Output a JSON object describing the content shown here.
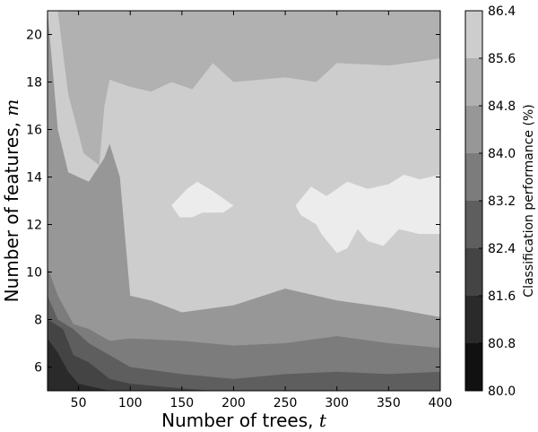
{
  "chart_data": {
    "type": "contour",
    "xlabel": "Number of trees, ",
    "xlabel_var": "t",
    "ylabel": "Number of features, ",
    "ylabel_var": "m",
    "xlim": [
      20,
      400
    ],
    "ylim": [
      5,
      21
    ],
    "x_ticks": [
      50,
      100,
      150,
      200,
      250,
      300,
      350,
      400
    ],
    "y_ticks": [
      6,
      8,
      10,
      12,
      14,
      16,
      18,
      20
    ],
    "x_tick_labels": [
      "50",
      "100",
      "150",
      "200",
      "250",
      "300",
      "350",
      "400"
    ],
    "y_tick_labels": [
      "6",
      "8",
      "10",
      "12",
      "14",
      "16",
      "18",
      "20"
    ],
    "colorbar": {
      "label": "Classification performance (%)",
      "levels": [
        80.0,
        80.8,
        81.6,
        82.4,
        83.2,
        84.0,
        84.8,
        85.6,
        86.4
      ],
      "level_labels": [
        "80.0",
        "80.8",
        "81.6",
        "82.4",
        "83.2",
        "84.0",
        "84.8",
        "85.6",
        "86.4"
      ],
      "colors": [
        "#111111",
        "#2a2a2a",
        "#444444",
        "#5e5e5e",
        "#7c7c7c",
        "#979797",
        "#b1b1b1",
        "#cdcdcd",
        "#ececec"
      ]
    },
    "regions": [
      {
        "band": 1,
        "points": [
          [
            20,
            7.2
          ],
          [
            30,
            6.6
          ],
          [
            40,
            5.8
          ],
          [
            50,
            5.3
          ],
          [
            80,
            5.0
          ],
          [
            20,
            5.0
          ]
        ]
      },
      {
        "band": 2,
        "points": [
          [
            20,
            8.0
          ],
          [
            35,
            7.6
          ],
          [
            45,
            6.5
          ],
          [
            60,
            6.2
          ],
          [
            80,
            5.5
          ],
          [
            100,
            5.3
          ],
          [
            150,
            5.1
          ],
          [
            180,
            5.0
          ],
          [
            20,
            5.0
          ]
        ]
      },
      {
        "band": 3,
        "points": [
          [
            20,
            9.0
          ],
          [
            30,
            8.0
          ],
          [
            45,
            7.6
          ],
          [
            60,
            7.0
          ],
          [
            80,
            6.5
          ],
          [
            100,
            6.0
          ],
          [
            150,
            5.7
          ],
          [
            200,
            5.5
          ],
          [
            250,
            5.7
          ],
          [
            300,
            5.8
          ],
          [
            350,
            5.7
          ],
          [
            400,
            5.8
          ],
          [
            400,
            5.0
          ],
          [
            20,
            5.0
          ]
        ]
      },
      {
        "band": 4,
        "points": [
          [
            20,
            10.2
          ],
          [
            30,
            9.0
          ],
          [
            45,
            7.8
          ],
          [
            60,
            7.6
          ],
          [
            80,
            7.1
          ],
          [
            100,
            7.2
          ],
          [
            150,
            7.1
          ],
          [
            200,
            6.9
          ],
          [
            250,
            7.0
          ],
          [
            300,
            7.3
          ],
          [
            350,
            7.0
          ],
          [
            400,
            6.8
          ],
          [
            400,
            5.0
          ],
          [
            20,
            5.0
          ]
        ]
      },
      {
        "band": 5,
        "points": [
          [
            20,
            21.0
          ],
          [
            20,
            21.0
          ],
          [
            30,
            16.0
          ],
          [
            40,
            14.2
          ],
          [
            60,
            13.8
          ],
          [
            75,
            14.8
          ],
          [
            80,
            15.4
          ],
          [
            90,
            14.0
          ],
          [
            100,
            9.0
          ],
          [
            120,
            8.8
          ],
          [
            150,
            8.3
          ],
          [
            200,
            8.6
          ],
          [
            250,
            9.3
          ],
          [
            300,
            8.8
          ],
          [
            350,
            8.5
          ],
          [
            400,
            8.1
          ],
          [
            400,
            5.0
          ],
          [
            20,
            5.0
          ]
        ]
      },
      {
        "band": 6,
        "points": [
          [
            20,
            21.0
          ],
          [
            30,
            21.0
          ],
          [
            40,
            17.5
          ],
          [
            55,
            15.0
          ],
          [
            70,
            14.5
          ],
          [
            75,
            17.0
          ],
          [
            80,
            18.1
          ],
          [
            100,
            17.8
          ],
          [
            120,
            17.6
          ],
          [
            140,
            18.0
          ],
          [
            160,
            17.7
          ],
          [
            180,
            18.8
          ],
          [
            200,
            18.0
          ],
          [
            250,
            18.2
          ],
          [
            280,
            18.0
          ],
          [
            300,
            18.8
          ],
          [
            350,
            18.7
          ],
          [
            400,
            19.0
          ],
          [
            400,
            5.0
          ],
          [
            20,
            5.0
          ]
        ]
      },
      {
        "band": 7,
        "points": [
          [
            20,
            21.0
          ],
          [
            400,
            21.0
          ],
          [
            400,
            19.0
          ],
          [
            380,
            18.9
          ],
          [
            350,
            18.7
          ],
          [
            300,
            18.8
          ],
          [
            280,
            18.0
          ],
          [
            250,
            18.2
          ],
          [
            200,
            18.0
          ],
          [
            180,
            18.8
          ],
          [
            160,
            17.7
          ],
          [
            140,
            18.0
          ],
          [
            120,
            17.6
          ],
          [
            100,
            17.8
          ],
          [
            80,
            18.1
          ],
          [
            75,
            17.0
          ],
          [
            70,
            14.5
          ],
          [
            55,
            15.0
          ],
          [
            40,
            17.5
          ],
          [
            30,
            21.0
          ]
        ]
      },
      {
        "band": 8,
        "points": [
          [
            140,
            12.8
          ],
          [
            155,
            13.5
          ],
          [
            165,
            13.8
          ],
          [
            180,
            13.4
          ],
          [
            200,
            12.8
          ],
          [
            190,
            12.5
          ],
          [
            170,
            12.5
          ],
          [
            160,
            12.3
          ],
          [
            148,
            12.3
          ]
        ]
      },
      {
        "band": 9,
        "points": [
          [
            260,
            12.8
          ],
          [
            275,
            13.6
          ],
          [
            290,
            13.2
          ],
          [
            310,
            13.8
          ],
          [
            330,
            13.5
          ],
          [
            350,
            13.7
          ],
          [
            365,
            14.1
          ],
          [
            380,
            13.9
          ],
          [
            400,
            14.1
          ],
          [
            400,
            11.6
          ],
          [
            380,
            11.6
          ],
          [
            360,
            11.8
          ],
          [
            345,
            11.1
          ],
          [
            330,
            11.3
          ],
          [
            320,
            11.8
          ],
          [
            310,
            11.0
          ],
          [
            300,
            10.8
          ],
          [
            285,
            11.6
          ],
          [
            280,
            12.0
          ],
          [
            265,
            12.4
          ]
        ]
      }
    ]
  }
}
